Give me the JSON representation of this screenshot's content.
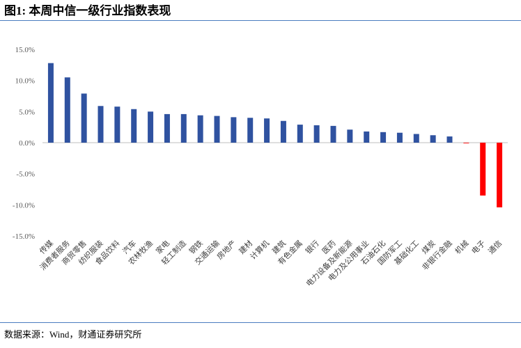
{
  "chart_data": {
    "type": "bar",
    "title": "图1: 本周中信一级行业指数表现",
    "source": "数据来源：Wind，财通证券研究所",
    "categories": [
      "传媒",
      "消费者服务",
      "商贸零售",
      "纺织服装",
      "食品饮料",
      "汽车",
      "农林牧渔",
      "家电",
      "轻工制造",
      "钢铁",
      "交通运输",
      "房地产",
      "建材",
      "计算机",
      "建筑",
      "有色金属",
      "银行",
      "医药",
      "电力设备及新能源",
      "电力及公用事业",
      "石油石化",
      "国防军工",
      "基础化工",
      "煤炭",
      "非银行金融",
      "机械",
      "电子",
      "通信"
    ],
    "values": [
      12.8,
      10.5,
      7.9,
      5.9,
      5.8,
      5.4,
      5.0,
      4.6,
      4.6,
      4.4,
      4.3,
      4.1,
      4.0,
      3.9,
      3.5,
      2.9,
      2.8,
      2.7,
      2.1,
      1.8,
      1.7,
      1.6,
      1.4,
      1.2,
      1.0,
      -0.1,
      -8.5,
      -10.4
    ],
    "color": "#2f52a0",
    "negative_color": "#ff0000",
    "ylim": [
      -15,
      15
    ],
    "yticks": [
      {
        "value": -15,
        "label": "-15.0%"
      },
      {
        "value": -10,
        "label": "-10.0%"
      },
      {
        "value": -5,
        "label": "-5.0%"
      },
      {
        "value": 0,
        "label": "0.0%"
      },
      {
        "value": 5,
        "label": "5.0%"
      },
      {
        "value": 10,
        "label": "10.0%"
      },
      {
        "value": 15,
        "label": "15.0%"
      }
    ],
    "grid": false
  }
}
